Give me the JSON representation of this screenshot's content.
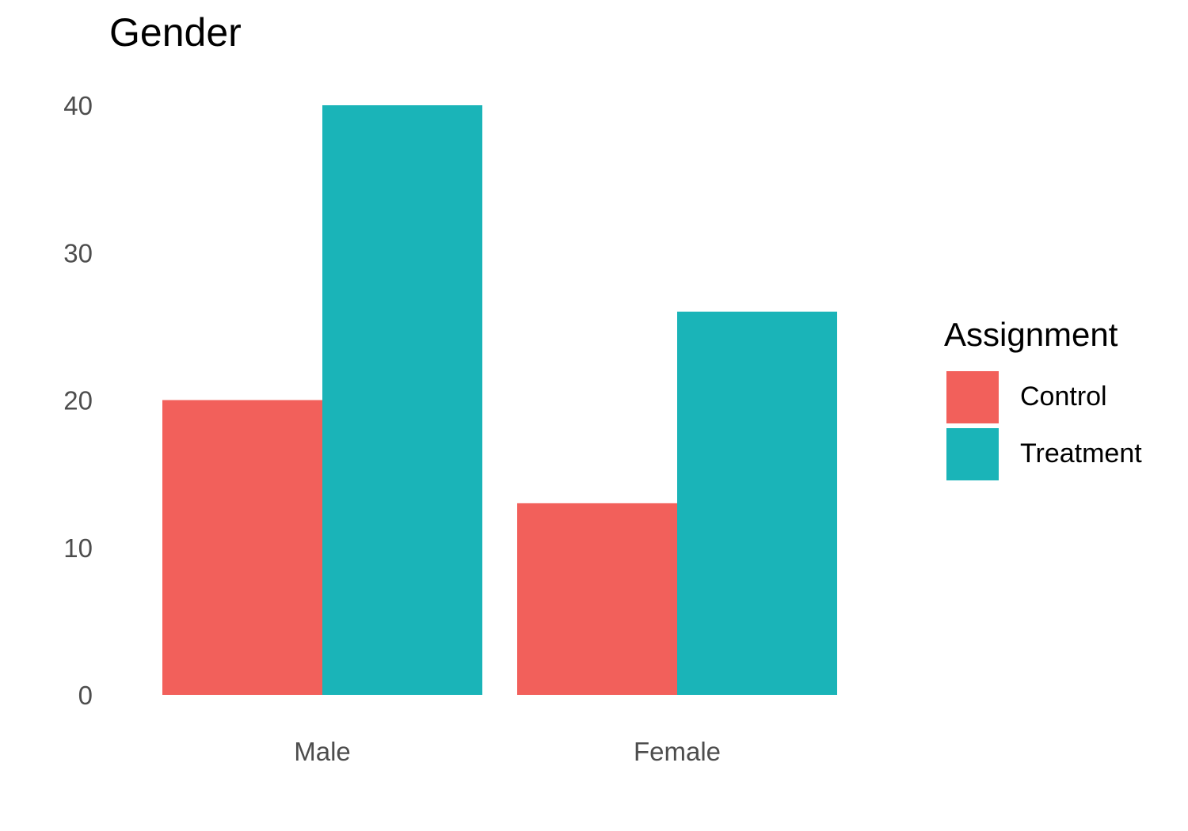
{
  "chart_data": {
    "type": "bar",
    "title": "Gender",
    "xlabel": "",
    "ylabel": "",
    "categories": [
      "Male",
      "Female"
    ],
    "series": [
      {
        "name": "Control",
        "values": [
          20,
          13
        ],
        "color": "#F2605B"
      },
      {
        "name": "Treatment",
        "values": [
          40,
          26
        ],
        "color": "#1AB4B8"
      }
    ],
    "ylim": [
      0,
      40
    ],
    "yticks": [
      0,
      10,
      20,
      30,
      40
    ],
    "grid": false,
    "legend": {
      "title": "Assignment",
      "position": "right"
    }
  }
}
